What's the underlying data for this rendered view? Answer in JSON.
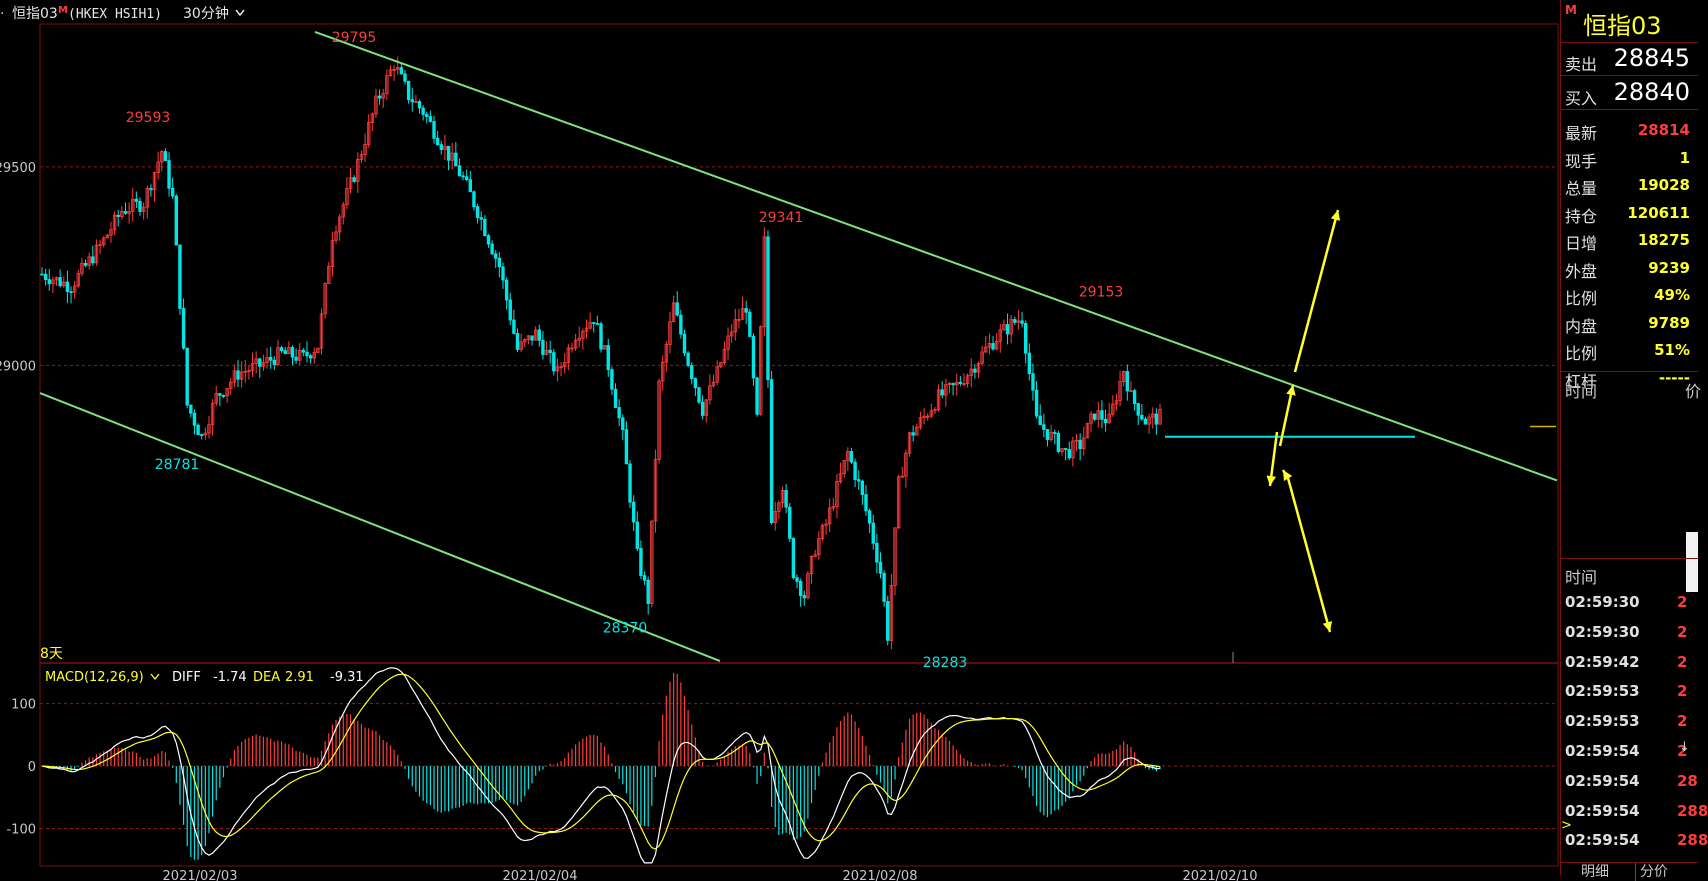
{
  "header": {
    "instrument": "恒指03",
    "exchange_code": "(HKEX HSIH1)",
    "period": "30分钟",
    "prefix": "·"
  },
  "chart_data": {
    "type": "candlestick",
    "ylim": [
      28250,
      29860
    ],
    "yticks": [
      29000,
      29500
    ],
    "price_labels": [
      {
        "text": "29593",
        "value": 29593,
        "color": "#ff3c3c",
        "pos": "above"
      },
      {
        "text": "29795",
        "value": 29795,
        "color": "#ff3c3c",
        "pos": "above"
      },
      {
        "text": "29341",
        "value": 29341,
        "color": "#ff3c3c",
        "pos": "above"
      },
      {
        "text": "29153",
        "value": 29153,
        "color": "#ff3c3c",
        "pos": "above"
      },
      {
        "text": "28781",
        "value": 28781,
        "color": "#00e5e5",
        "pos": "below"
      },
      {
        "text": "28370",
        "value": 28370,
        "color": "#00e5e5",
        "pos": "below"
      },
      {
        "text": "28283",
        "value": 28283,
        "color": "#00e5e5",
        "pos": "below"
      }
    ],
    "range_label": "8天",
    "indicator": {
      "name": "MACD(12,26,9)",
      "diff_label": "DIFF",
      "diff_value": "-1.74",
      "dea_label": "DEA",
      "dea_value": "2.91",
      "macd_value": "-9.31",
      "ylim": [
        -160,
        165
      ],
      "yticks": [
        100,
        0,
        -100
      ],
      "ytick_labels": [
        "100",
        "0",
        "-100"
      ]
    },
    "x_date_labels": [
      "2021/02/03",
      "2021/02/04",
      "2021/02/08",
      "2021/02/10"
    ]
  },
  "quote_panel": {
    "logo_badge": "M",
    "title": "恒指03",
    "sell_label": "卖出",
    "sell_value": "28845",
    "buy_label": "买入",
    "buy_value": "28840",
    "rows": [
      {
        "label": "最新",
        "value": "28814",
        "color": "red"
      },
      {
        "label": "现手",
        "value": "1",
        "color": "yellow"
      },
      {
        "label": "总量",
        "value": "19028",
        "color": "yellow"
      },
      {
        "label": "持仓",
        "value": "120611",
        "color": "yellow"
      },
      {
        "label": "日增",
        "value": "18275",
        "color": "yellow"
      },
      {
        "label": "外盘",
        "value": "9239",
        "color": "yellow"
      },
      {
        "label": "比例",
        "value": "49%",
        "color": "yellow"
      },
      {
        "label": "内盘",
        "value": "9789",
        "color": "yellow"
      },
      {
        "label": "比例",
        "value": "51%",
        "color": "yellow"
      },
      {
        "label": "杠杆",
        "value": "-----",
        "color": "yellow"
      }
    ],
    "time_header_1": "时间",
    "price_header_cut": "价",
    "time_header_2": "时间",
    "ticks": [
      {
        "time": "02:59:30",
        "value": "2"
      },
      {
        "time": "02:59:30",
        "value": "2"
      },
      {
        "time": "02:59:42",
        "value": "2"
      },
      {
        "time": "02:59:53",
        "value": "2"
      },
      {
        "time": "02:59:53",
        "value": "2"
      },
      {
        "time": "02:59:54",
        "value": "2"
      },
      {
        "time": "02:59:54",
        "value": "28"
      },
      {
        "time": "02:59:54",
        "value": "288"
      },
      {
        "time": "02:59:54",
        "value": "288"
      }
    ],
    "bottom_tabs": [
      "明细",
      "分价"
    ]
  }
}
